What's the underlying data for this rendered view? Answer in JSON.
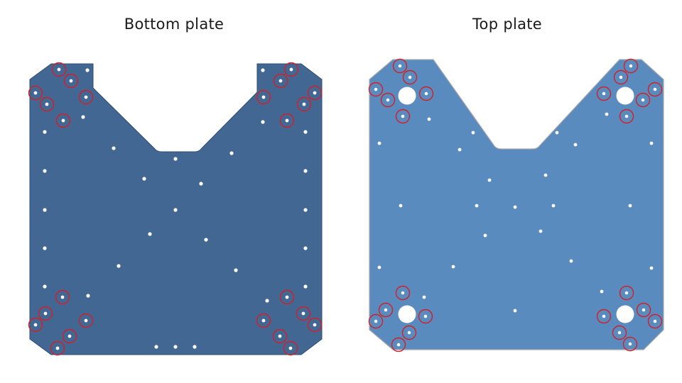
{
  "bottom_plate": {
    "title": "Bottom plate",
    "fill": "#436793",
    "edge": "#2f4d72"
  },
  "top_plate": {
    "title": "Top plate",
    "fill": "#5a8bbf",
    "edge": "#a8a8a8"
  },
  "hole_color": "#ffffff",
  "marker_color": "#d0202a"
}
